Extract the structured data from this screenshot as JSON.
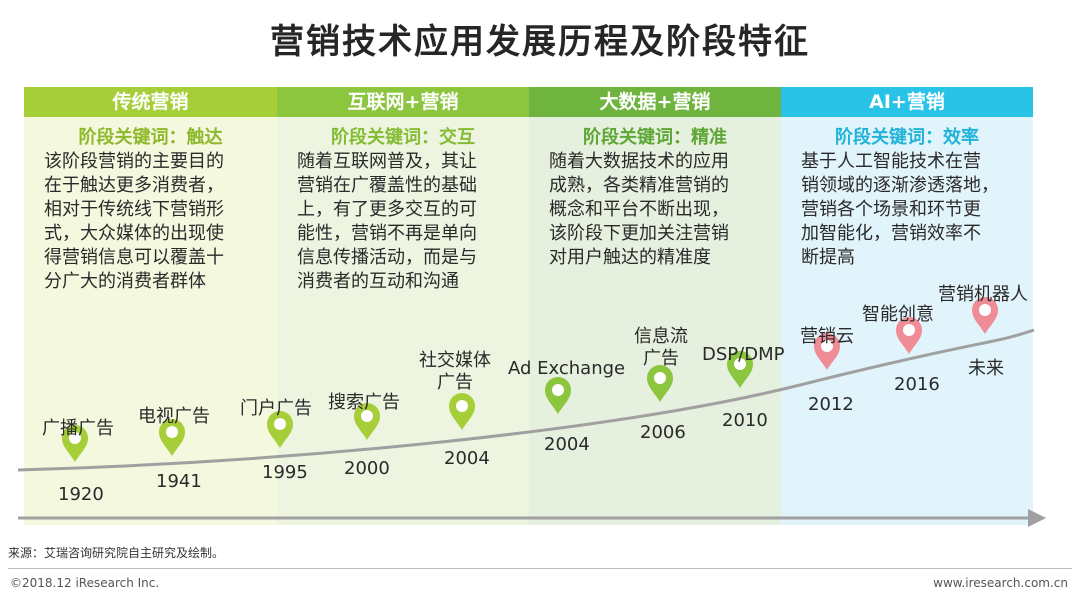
{
  "title": "营销技术应用发展历程及阶段特征",
  "stages": [
    {
      "header": "传统营销",
      "keyword": "阶段关键词：触达",
      "desc": [
        "该阶段营销的主要目的",
        "在于触达更多消费者，",
        "相对于传统线下营销形",
        "式，大众媒体的出现使",
        "得营销信息可以覆盖十",
        "分广大的消费者群体"
      ]
    },
    {
      "header": "互联网+营销",
      "keyword": "阶段关键词：交互",
      "desc": [
        "随着互联网普及，其让",
        "营销在广覆盖性的基础",
        "上，有了更多交互的可",
        "能性，营销不再是单向",
        "信息传播活动，而是与",
        "消费者的互动和沟通"
      ]
    },
    {
      "header": "大数据+营销",
      "keyword": "阶段关键词：精准",
      "desc": [
        "随着大数据技术的应用",
        "成熟，各类精准营销的",
        "概念和平台不断出现，",
        "该阶段下更加关注营销",
        "对用户触达的精准度"
      ]
    },
    {
      "header": "AI+营销",
      "keyword": "阶段关键词：效率",
      "desc": [
        "基于人工智能技术在营",
        "销领域的逐渐渗透落地，",
        "营销各个场景和环节更",
        "加智能化，营销效率不",
        "断提高"
      ]
    }
  ],
  "milestones": [
    {
      "label": [
        "广播广告"
      ],
      "year": "1920",
      "color": "#a6ce39"
    },
    {
      "label": [
        "电视广告"
      ],
      "year": "1941",
      "color": "#a6ce39"
    },
    {
      "label": [
        "门户广告"
      ],
      "year": "1995",
      "color": "#a6ce39"
    },
    {
      "label": [
        "搜索广告"
      ],
      "year": "2000",
      "color": "#a6ce39"
    },
    {
      "label": [
        "社交媒体",
        "广告"
      ],
      "year": "2004",
      "color": "#a6ce39"
    },
    {
      "label": [
        "Ad Exchange"
      ],
      "year": "2004",
      "color": "#8cc63f"
    },
    {
      "label": [
        "信息流",
        "广告"
      ],
      "year": "2006",
      "color": "#8cc63f"
    },
    {
      "label": [
        "DSP/DMP"
      ],
      "year": "2010",
      "color": "#8cc63f"
    },
    {
      "label": [
        "营销云"
      ],
      "year": "2012",
      "color": "#f08c96"
    },
    {
      "label": [
        "智能创意"
      ],
      "year": "2016",
      "color": "#f08c96"
    },
    {
      "label": [
        "营销机器人"
      ],
      "year": "未来",
      "color": "#f08c96"
    }
  ],
  "colors": {
    "timeline": "#a0a0a0",
    "arrow": "#a0a0a0"
  },
  "source": "来源：艾瑞咨询研究院自主研究及绘制。",
  "copyright": "©2018.12 iResearch Inc.",
  "site": "www.iresearch.com.cn"
}
